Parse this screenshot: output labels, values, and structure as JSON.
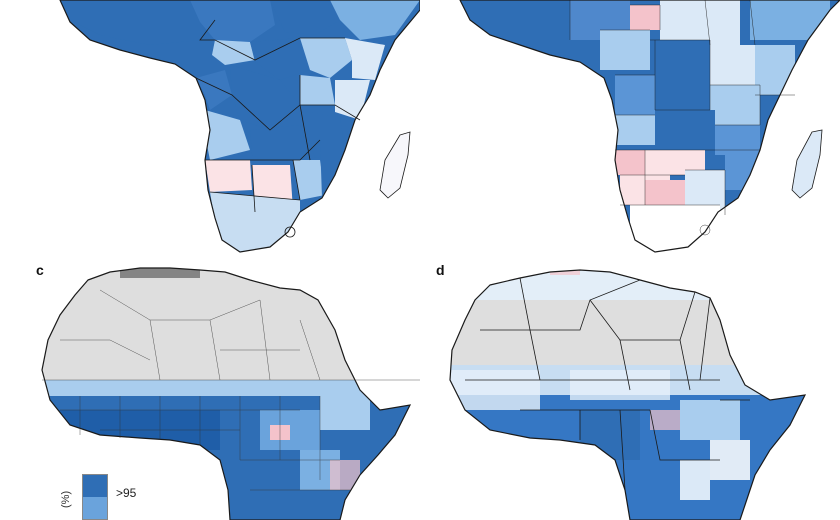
{
  "figure": {
    "panels": [
      {
        "id": "a",
        "letter": "",
        "style": "national"
      },
      {
        "id": "b",
        "letter": "",
        "style": "subnational"
      },
      {
        "id": "c",
        "letter": "c",
        "style": "district"
      },
      {
        "id": "d",
        "letter": "d",
        "style": "grid"
      }
    ]
  },
  "legend": {
    "max_label": ">95",
    "axis_label": "(%)",
    "colors": {
      "high": "#2f6eb5",
      "mid": "#6aa3dc",
      "low": "#c7ddf2",
      "decrease": "#f6c9cf"
    }
  },
  "map_colors": {
    "ocean": "#ffffff",
    "deep_blue": "#2f6eb5",
    "mid_blue": "#5b95d6",
    "light_blue": "#a9cdee",
    "pale_blue": "#dbe9f7",
    "pink": "#f4c3cb",
    "pale_pink": "#fbe3e6",
    "grey": "#dedede",
    "border": "#1a1a1a"
  }
}
